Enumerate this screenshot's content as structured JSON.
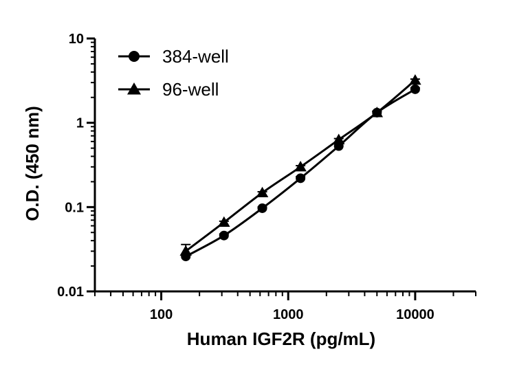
{
  "chart_data": {
    "type": "line",
    "x_scale": "log",
    "y_scale": "log",
    "xlim": [
      30,
      30000
    ],
    "ylim": [
      0.01,
      10
    ],
    "x_tick_labels": [
      "100",
      "1000",
      "10000"
    ],
    "x_tick_values": [
      100,
      1000,
      10000
    ],
    "y_tick_labels": [
      "0.01",
      "0.1",
      "1",
      "10"
    ],
    "y_tick_values": [
      0.01,
      0.1,
      1,
      10
    ],
    "xlabel": "Human IGF2R (pg/mL)",
    "ylabel": "O.D. (450 nm)",
    "grid": false,
    "legend_position": "top-left",
    "series": [
      {
        "name": "384-well",
        "marker": "circle",
        "color": "#000000",
        "x": [
          156,
          312,
          625,
          1250,
          2500,
          5000,
          10000
        ],
        "y": [
          0.026,
          0.046,
          0.097,
          0.22,
          0.53,
          1.32,
          2.5
        ],
        "y_err": [
          0.001,
          0.002,
          0.003,
          0.01,
          0.04,
          0.05,
          0.1
        ]
      },
      {
        "name": "96-well",
        "marker": "triangle",
        "color": "#000000",
        "x": [
          156,
          312,
          625,
          1250,
          2500,
          5000,
          10000
        ],
        "y": [
          0.03,
          0.066,
          0.148,
          0.3,
          0.63,
          1.32,
          3.2
        ],
        "y_err": [
          0.006,
          0.002,
          0.004,
          0.01,
          0.02,
          0.05,
          0.1
        ]
      }
    ]
  }
}
